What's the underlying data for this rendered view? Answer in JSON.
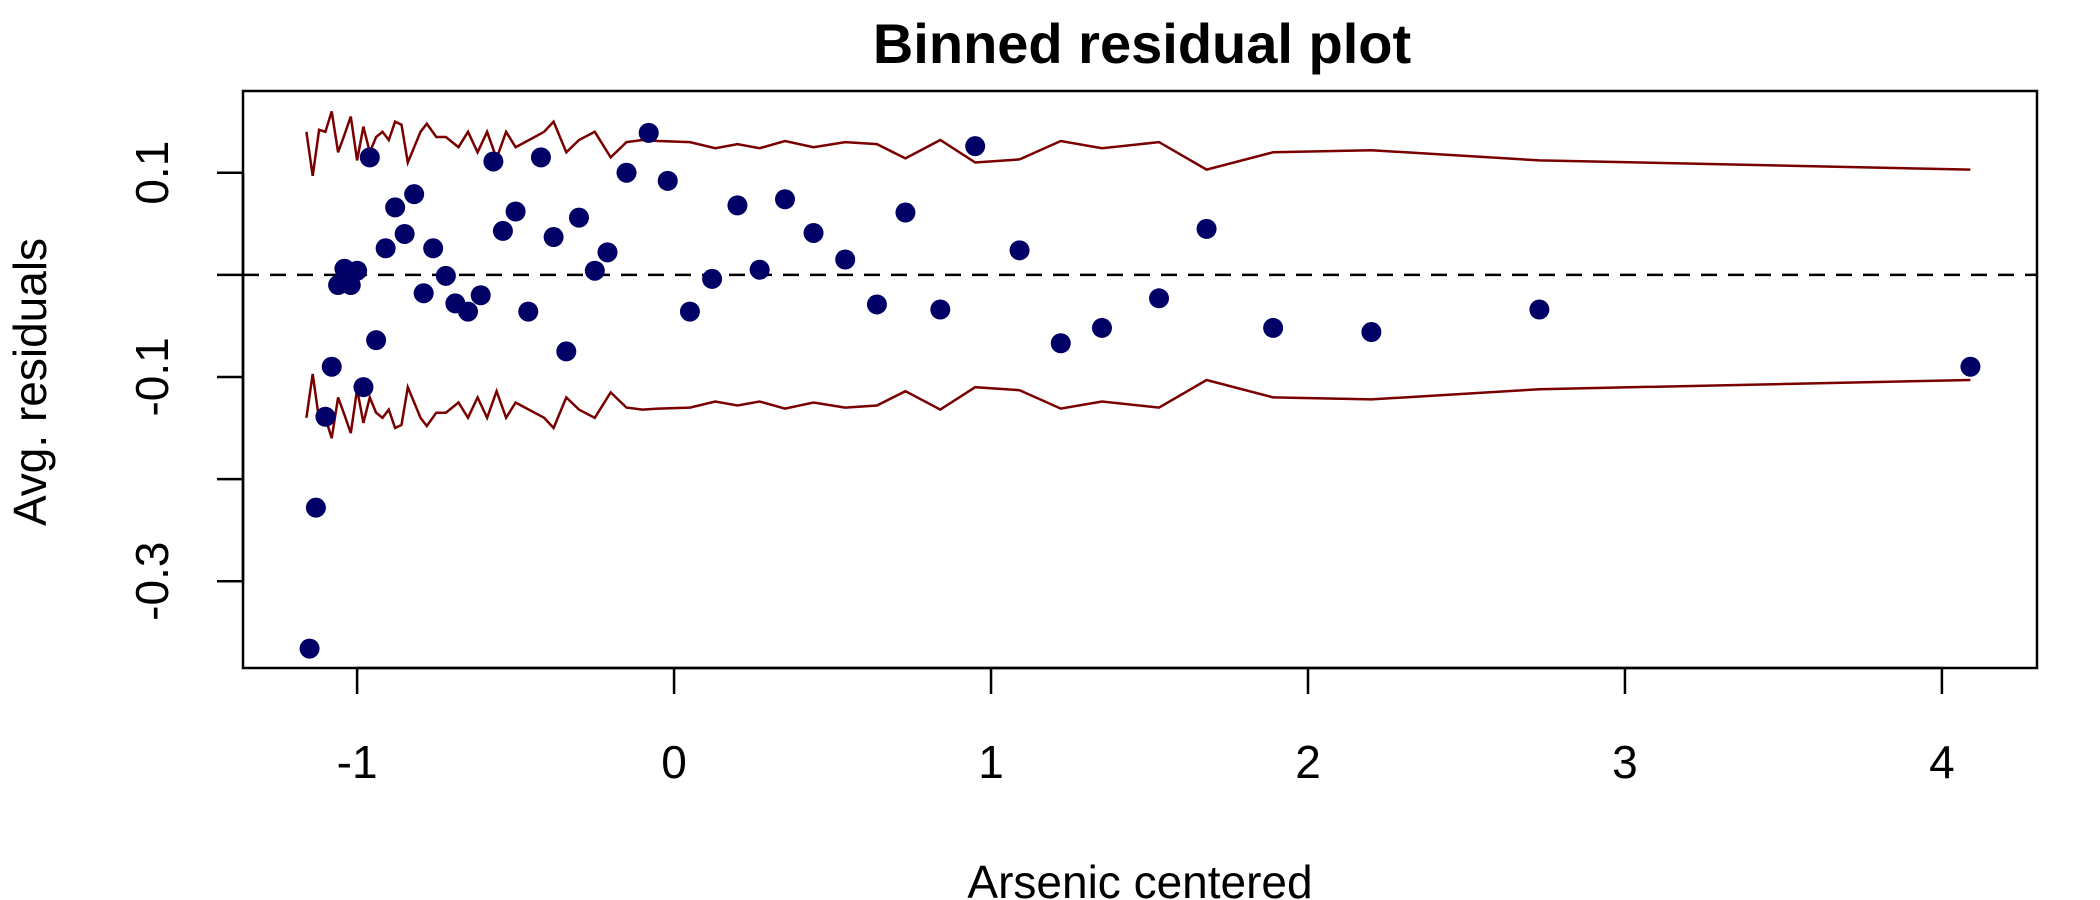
{
  "chart_data": {
    "type": "scatter",
    "title": "Binned residual plot",
    "xlabel": "Arsenic centered",
    "ylabel": "Avg. residuals",
    "xlim": [
      -1.36,
      4.3
    ],
    "ylim": [
      -0.385,
      0.18
    ],
    "x_ticks": [
      -1,
      0,
      1,
      2,
      3,
      4
    ],
    "x_tick_labels": [
      "-1",
      "0",
      "1",
      "2",
      "3",
      "4"
    ],
    "y_ticks": [
      0.1,
      0.0,
      -0.1,
      -0.2,
      -0.3
    ],
    "y_tick_labels": [
      "0.1",
      "",
      "-0.1",
      "",
      "-0.3"
    ],
    "reference_line_y": 0,
    "grid": false,
    "colors": {
      "points": "#000066",
      "bounds": "#7a0000",
      "reference": "#000000"
    },
    "points": {
      "name": "",
      "x": [
        -1.15,
        -1.13,
        -1.1,
        -1.08,
        -1.06,
        -1.04,
        -1.02,
        -1.0,
        -0.98,
        -0.96,
        -0.94,
        -0.91,
        -0.88,
        -0.85,
        -0.82,
        -0.79,
        -0.76,
        -0.72,
        -0.69,
        -0.65,
        -0.61,
        -0.57,
        -0.54,
        -0.5,
        -0.46,
        -0.42,
        -0.38,
        -0.34,
        -0.3,
        -0.25,
        -0.21,
        -0.15,
        -0.08,
        -0.02,
        0.05,
        0.12,
        0.2,
        0.27,
        0.35,
        0.44,
        0.54,
        0.64,
        0.73,
        0.84,
        0.95,
        1.09,
        1.22,
        1.35,
        1.53,
        1.68,
        1.89,
        2.2,
        2.73,
        4.09
      ],
      "y": [
        -0.366,
        -0.228,
        -0.139,
        -0.09,
        -0.01,
        0.006,
        -0.01,
        0.004,
        -0.11,
        0.115,
        -0.064,
        0.026,
        0.066,
        0.04,
        0.079,
        -0.018,
        0.026,
        -0.001,
        -0.028,
        -0.036,
        -0.02,
        0.111,
        0.043,
        0.062,
        -0.036,
        0.115,
        0.037,
        -0.075,
        0.056,
        0.004,
        0.022,
        0.1,
        0.139,
        0.092,
        -0.036,
        -0.004,
        0.068,
        0.005,
        0.074,
        0.041,
        0.015,
        -0.029,
        0.061,
        -0.034,
        0.126,
        0.024,
        -0.067,
        -0.052,
        -0.023,
        0.045,
        -0.052,
        -0.056,
        -0.034,
        -0.09
      ]
    },
    "bounds": {
      "x": [
        -1.16,
        -1.14,
        -1.12,
        -1.1,
        -1.08,
        -1.06,
        -1.04,
        -1.02,
        -1.0,
        -0.98,
        -0.96,
        -0.94,
        -0.92,
        -0.9,
        -0.88,
        -0.86,
        -0.84,
        -0.82,
        -0.8,
        -0.78,
        -0.75,
        -0.72,
        -0.68,
        -0.65,
        -0.62,
        -0.59,
        -0.56,
        -0.53,
        -0.5,
        -0.47,
        -0.44,
        -0.41,
        -0.38,
        -0.34,
        -0.3,
        -0.25,
        -0.2,
        -0.15,
        -0.1,
        -0.05,
        0.05,
        0.13,
        0.2,
        0.27,
        0.35,
        0.44,
        0.54,
        0.64,
        0.73,
        0.84,
        0.95,
        1.09,
        1.22,
        1.35,
        1.53,
        1.68,
        1.89,
        2.2,
        2.73,
        4.09
      ],
      "upper": [
        0.14,
        0.097,
        0.142,
        0.14,
        0.16,
        0.12,
        0.137,
        0.155,
        0.112,
        0.145,
        0.12,
        0.135,
        0.14,
        0.132,
        0.15,
        0.147,
        0.11,
        0.125,
        0.14,
        0.148,
        0.135,
        0.135,
        0.125,
        0.14,
        0.12,
        0.14,
        0.114,
        0.14,
        0.125,
        0.13,
        0.135,
        0.14,
        0.15,
        0.12,
        0.132,
        0.14,
        0.115,
        0.13,
        0.132,
        0.131,
        0.13,
        0.124,
        0.128,
        0.124,
        0.131,
        0.125,
        0.13,
        0.128,
        0.114,
        0.132,
        0.11,
        0.113,
        0.131,
        0.124,
        0.13,
        0.103,
        0.12,
        0.122,
        0.112,
        0.103
      ],
      "lower": [
        -0.14,
        -0.097,
        -0.142,
        -0.14,
        -0.16,
        -0.12,
        -0.137,
        -0.155,
        -0.112,
        -0.145,
        -0.12,
        -0.135,
        -0.14,
        -0.132,
        -0.15,
        -0.147,
        -0.11,
        -0.125,
        -0.14,
        -0.148,
        -0.135,
        -0.135,
        -0.125,
        -0.14,
        -0.12,
        -0.14,
        -0.114,
        -0.14,
        -0.125,
        -0.13,
        -0.135,
        -0.14,
        -0.15,
        -0.12,
        -0.132,
        -0.14,
        -0.115,
        -0.13,
        -0.132,
        -0.131,
        -0.13,
        -0.124,
        -0.128,
        -0.124,
        -0.131,
        -0.125,
        -0.13,
        -0.128,
        -0.114,
        -0.132,
        -0.11,
        -0.113,
        -0.131,
        -0.124,
        -0.13,
        -0.103,
        -0.12,
        -0.122,
        -0.112,
        -0.103
      ]
    }
  }
}
